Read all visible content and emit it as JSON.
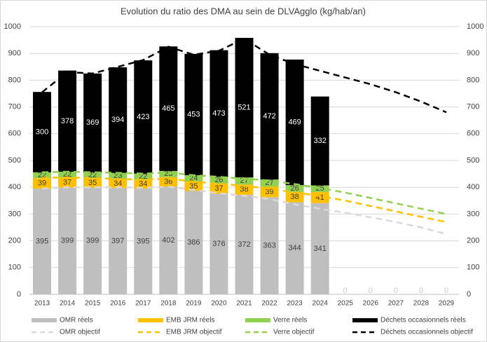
{
  "chart_data": {
    "type": "bar",
    "title": "Evolution du ratio des DMA au sein de DLVAgglo (kg/hab/an)",
    "categories": [
      "2013",
      "2014",
      "2015",
      "2016",
      "2017",
      "2018",
      "2019",
      "2020",
      "2021",
      "2022",
      "2023",
      "2024",
      "2025",
      "2026",
      "2027",
      "2028",
      "2029"
    ],
    "series": [
      {
        "name": "OMR réels",
        "type": "bar",
        "color": "#bfbfbf",
        "label_color": "#404040",
        "values": [
          395,
          399,
          399,
          397,
          395,
          402,
          386,
          376,
          372,
          363,
          344,
          341,
          null,
          null,
          null,
          null,
          null
        ]
      },
      {
        "name": "EMB JRM réels",
        "type": "bar",
        "color": "#ffc000",
        "label_color": "#404040",
        "values": [
          39,
          37,
          35,
          34,
          34,
          36,
          35,
          37,
          38,
          39,
          38,
          41,
          null,
          null,
          null,
          null,
          null
        ]
      },
      {
        "name": "Verre réels",
        "type": "bar",
        "color": "#92d050",
        "label_color": "#404040",
        "values": [
          22,
          22,
          22,
          23,
          22,
          23,
          24,
          26,
          27,
          27,
          26,
          25,
          null,
          null,
          null,
          null,
          null
        ]
      },
      {
        "name": "Déchets occasionnels réels",
        "type": "bar",
        "color": "#000000",
        "label_color": "#ffffff",
        "values": [
          300,
          378,
          369,
          394,
          423,
          465,
          453,
          473,
          521,
          472,
          469,
          332,
          0,
          0,
          0,
          0,
          0
        ]
      },
      {
        "name": "OMR objectif",
        "type": "line",
        "color": "#d9d9d9",
        "values": [
          395,
          400,
          400,
          400,
          398,
          402,
          390,
          378,
          368,
          356,
          336,
          320,
          305,
          288,
          270,
          250,
          225
        ]
      },
      {
        "name": "EMB JRM objectif",
        "type": "line",
        "color": "#ffc000",
        "values": [
          435,
          437,
          434,
          431,
          429,
          432,
          421,
          413,
          405,
          395,
          380,
          368,
          350,
          330,
          310,
          290,
          270
        ]
      },
      {
        "name": "Verre objectif",
        "type": "line",
        "color": "#92d050",
        "values": [
          456,
          458,
          456,
          454,
          451,
          455,
          445,
          439,
          432,
          425,
          412,
          397,
          380,
          360,
          340,
          320,
          300
        ]
      },
      {
        "name": "Déchets occasionnels objectif",
        "type": "line",
        "color": "#000000",
        "values": [
          755,
          830,
          825,
          850,
          875,
          925,
          895,
          910,
          955,
          895,
          860,
          835,
          810,
          785,
          755,
          720,
          680
        ]
      }
    ],
    "ylim": [
      0,
      1000
    ],
    "yticks": [
      0,
      100,
      200,
      300,
      400,
      500,
      600,
      700,
      800,
      900,
      1000
    ],
    "y2lim": [
      0,
      1000
    ],
    "y2ticks": [
      0,
      100,
      200,
      300,
      400,
      500,
      600,
      700,
      800,
      900,
      1000
    ],
    "grid": true,
    "legend": "bottom"
  }
}
